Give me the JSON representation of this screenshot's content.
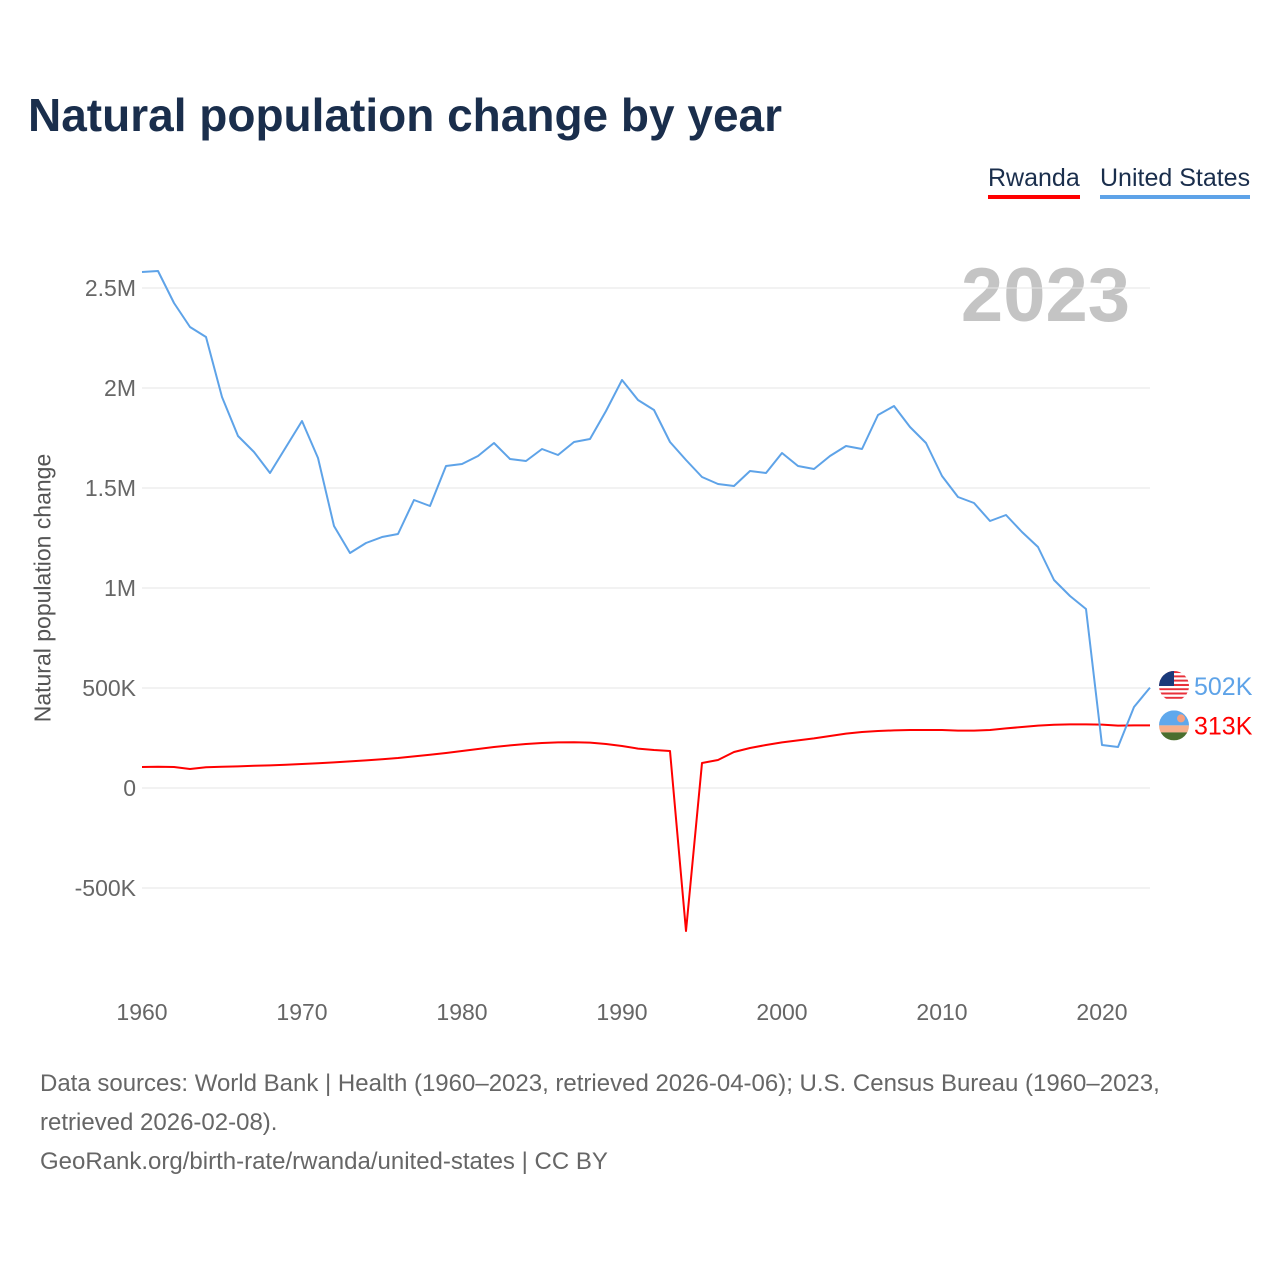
{
  "title": "Natural population change by year",
  "current_year": "2023",
  "footer": {
    "sources": "Data sources: World Bank | Health (1960–2023, retrieved 2026-04-06); U.S. Census Bureau (1960–2023, retrieved 2026-02-08).",
    "credit": "GeoRank.org/birth-rate/rwanda/united-states | CC BY"
  },
  "chart_data": {
    "type": "line",
    "title": "Natural population change by year",
    "xlabel": "",
    "ylabel": "Natural population change",
    "xlim": [
      1960,
      2023
    ],
    "ylim": [
      -1000000,
      2750000
    ],
    "grid": true,
    "legend_position": "top-right",
    "x_ticks": [
      {
        "v": 1960,
        "label": "1960"
      },
      {
        "v": 1970,
        "label": "1970"
      },
      {
        "v": 1980,
        "label": "1980"
      },
      {
        "v": 1990,
        "label": "1990"
      },
      {
        "v": 2000,
        "label": "2000"
      },
      {
        "v": 2010,
        "label": "2010"
      },
      {
        "v": 2020,
        "label": "2020"
      }
    ],
    "y_ticks": [
      {
        "v": -500000,
        "label": "-500K"
      },
      {
        "v": 0,
        "label": "0"
      },
      {
        "v": 500000,
        "label": "500K"
      },
      {
        "v": 1000000,
        "label": "1M"
      },
      {
        "v": 1500000,
        "label": "1.5M"
      },
      {
        "v": 2000000,
        "label": "2M"
      },
      {
        "v": 2500000,
        "label": "2.5M"
      }
    ],
    "x": [
      1960,
      1961,
      1962,
      1963,
      1964,
      1965,
      1966,
      1967,
      1968,
      1969,
      1970,
      1971,
      1972,
      1973,
      1974,
      1975,
      1976,
      1977,
      1978,
      1979,
      1980,
      1981,
      1982,
      1983,
      1984,
      1985,
      1986,
      1987,
      1988,
      1989,
      1990,
      1991,
      1992,
      1993,
      1994,
      1995,
      1996,
      1997,
      1998,
      1999,
      2000,
      2001,
      2002,
      2003,
      2004,
      2005,
      2006,
      2007,
      2008,
      2009,
      2010,
      2011,
      2012,
      2013,
      2014,
      2015,
      2016,
      2017,
      2018,
      2019,
      2020,
      2021,
      2022,
      2023
    ],
    "series": [
      {
        "name": "Rwanda",
        "color": "#ff0000",
        "end_label": "313K",
        "flag": "rwanda-flag",
        "values": [
          105000,
          106000,
          105000,
          95000,
          104000,
          106000,
          108000,
          111000,
          113000,
          116000,
          120000,
          124000,
          128000,
          133000,
          138000,
          144000,
          150000,
          158000,
          166000,
          175000,
          185000,
          195000,
          205000,
          213000,
          220000,
          225000,
          228000,
          229000,
          227000,
          220000,
          210000,
          197000,
          190000,
          185000,
          -715000,
          125000,
          140000,
          180000,
          200000,
          215000,
          228000,
          238000,
          248000,
          260000,
          272000,
          280000,
          285000,
          288000,
          290000,
          290000,
          290000,
          287000,
          287000,
          290000,
          298000,
          305000,
          312000,
          316000,
          318000,
          318000,
          317000,
          312000,
          313000,
          313000
        ]
      },
      {
        "name": "United States",
        "color": "#5ea3e8",
        "end_label": "502K",
        "flag": "us-flag",
        "values": [
          2580000,
          2585000,
          2425000,
          2305000,
          2255000,
          1955000,
          1760000,
          1680000,
          1575000,
          1705000,
          1835000,
          1650000,
          1310000,
          1175000,
          1225000,
          1255000,
          1270000,
          1440000,
          1410000,
          1610000,
          1620000,
          1660000,
          1725000,
          1645000,
          1635000,
          1695000,
          1665000,
          1730000,
          1745000,
          1885000,
          2040000,
          1940000,
          1890000,
          1730000,
          1640000,
          1555000,
          1520000,
          1510000,
          1585000,
          1575000,
          1675000,
          1610000,
          1595000,
          1660000,
          1710000,
          1695000,
          1865000,
          1910000,
          1805000,
          1725000,
          1560000,
          1455000,
          1425000,
          1335000,
          1365000,
          1280000,
          1205000,
          1040000,
          960000,
          895000,
          215000,
          205000,
          405000,
          502000
        ]
      }
    ]
  }
}
